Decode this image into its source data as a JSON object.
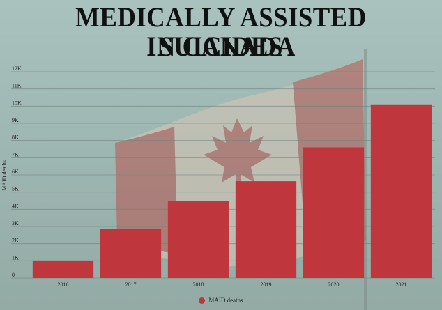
{
  "title_line1": "MEDICALLY ASSISTED SUICIDES",
  "title_line2": "IN CANADA",
  "colors": {
    "bar": "#c0363d",
    "background": "#9fb8b3",
    "grid": "#6f807c"
  },
  "chart_data": {
    "type": "bar",
    "categories": [
      "2016",
      "2017",
      "2018",
      "2019",
      "2020",
      "2021"
    ],
    "series": [
      {
        "name": "MAID deaths",
        "values": [
          1018,
          2838,
          4478,
          5631,
          7603,
          10064
        ]
      }
    ],
    "ylabel": "MAID deaths",
    "xlabel": "",
    "ylim": [
      0,
      12000
    ],
    "yticks": [
      0,
      1000,
      2000,
      3000,
      4000,
      5000,
      6000,
      7000,
      8000,
      9000,
      10000,
      11000,
      12000
    ],
    "ytick_labels": [
      "0",
      "1K",
      "2K",
      "3K",
      "4K",
      "5K",
      "6K",
      "7K",
      "8K",
      "9K",
      "10K",
      "11K",
      "12K"
    ],
    "grid": true,
    "legend": "bottom-center"
  }
}
